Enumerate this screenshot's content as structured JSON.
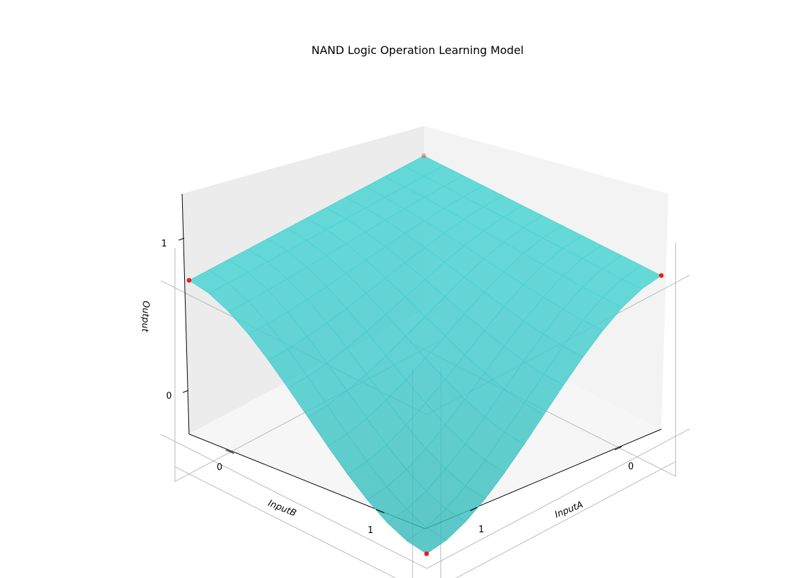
{
  "chart_data": {
    "type": "surface",
    "title": "NAND Logic Operation Learning Model",
    "xlabel": "InputA",
    "ylabel": "InputB",
    "zlabel": "Output",
    "xticks": [
      "0",
      "1"
    ],
    "yticks": [
      "0",
      "1"
    ],
    "zticks": [
      "0",
      "1"
    ],
    "surface_color": "#40c8cc",
    "point_color": "#ff0000",
    "points": [
      {
        "x": 0,
        "y": 0,
        "z": 1
      },
      {
        "x": 0,
        "y": 1,
        "z": 1
      },
      {
        "x": 1,
        "y": 0,
        "z": 1
      },
      {
        "x": 1,
        "y": 1,
        "z": 0
      }
    ]
  }
}
